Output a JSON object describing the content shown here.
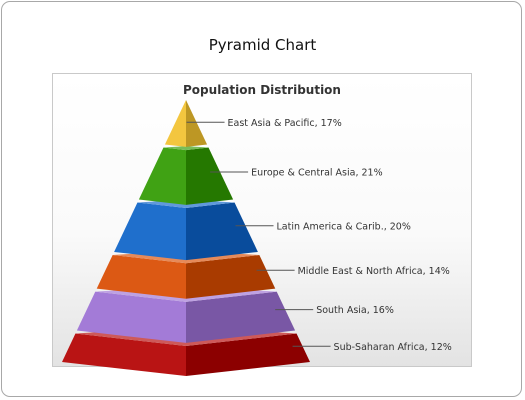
{
  "page": {
    "title": "Pyramid Chart"
  },
  "chart_data": {
    "type": "pyramid",
    "title": "Population Distribution",
    "segments": [
      {
        "name": "East Asia & Pacific",
        "value": 17,
        "label": "East Asia & Pacific, 17%",
        "color": "#f2c12e"
      },
      {
        "name": "Europe & Central Asia",
        "value": 21,
        "label": "Europe & Central Asia, 21%",
        "color": "#2f9a00"
      },
      {
        "name": "Latin America & Carib.",
        "value": 20,
        "label": "Latin America & Carib., 20%",
        "color": "#0b62c8"
      },
      {
        "name": "Middle East & North Africa",
        "value": 14,
        "label": "Middle East & North Africa, 14%",
        "color": "#d94b00"
      },
      {
        "name": "South Asia",
        "value": 16,
        "label": "South Asia, 16%",
        "color": "#9b6fd3"
      },
      {
        "name": "Sub-Saharan Africa",
        "value": 12,
        "label": "Sub-Saharan Africa, 12%",
        "color": "#b30000"
      }
    ]
  }
}
